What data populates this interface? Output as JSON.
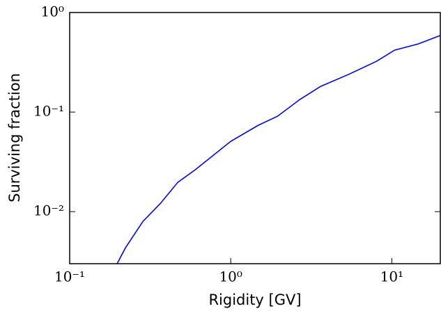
{
  "chart_data": {
    "type": "line",
    "xlabel": "Rigidity [GV]",
    "ylabel": "Surviving fraction",
    "xscale": "log",
    "yscale": "log",
    "xlim": [
      0.1,
      20
    ],
    "ylim": [
      0.003,
      1
    ],
    "xticks": [
      {
        "value": 0.1,
        "label": "10⁻¹"
      },
      {
        "value": 1,
        "label": "10⁰"
      },
      {
        "value": 10,
        "label": "10¹"
      }
    ],
    "yticks": [
      {
        "value": 0.01,
        "label": "10⁻²"
      },
      {
        "value": 0.1,
        "label": "10⁻¹"
      },
      {
        "value": 1,
        "label": "10⁰"
      }
    ],
    "x": [
      0.197,
      0.222,
      0.285,
      0.366,
      0.469,
      0.601,
      1.0,
      1.48,
      1.95,
      2.69,
      3.61,
      5.39,
      8.04,
      10.4,
      14.6,
      20
    ],
    "series": [
      {
        "color": "#0000ff",
        "values": [
          0.003,
          0.00433,
          0.00798,
          0.0121,
          0.0197,
          0.0263,
          0.0508,
          0.0736,
          0.0908,
          0.134,
          0.181,
          0.239,
          0.324,
          0.419,
          0.484,
          0.588
        ]
      }
    ]
  }
}
